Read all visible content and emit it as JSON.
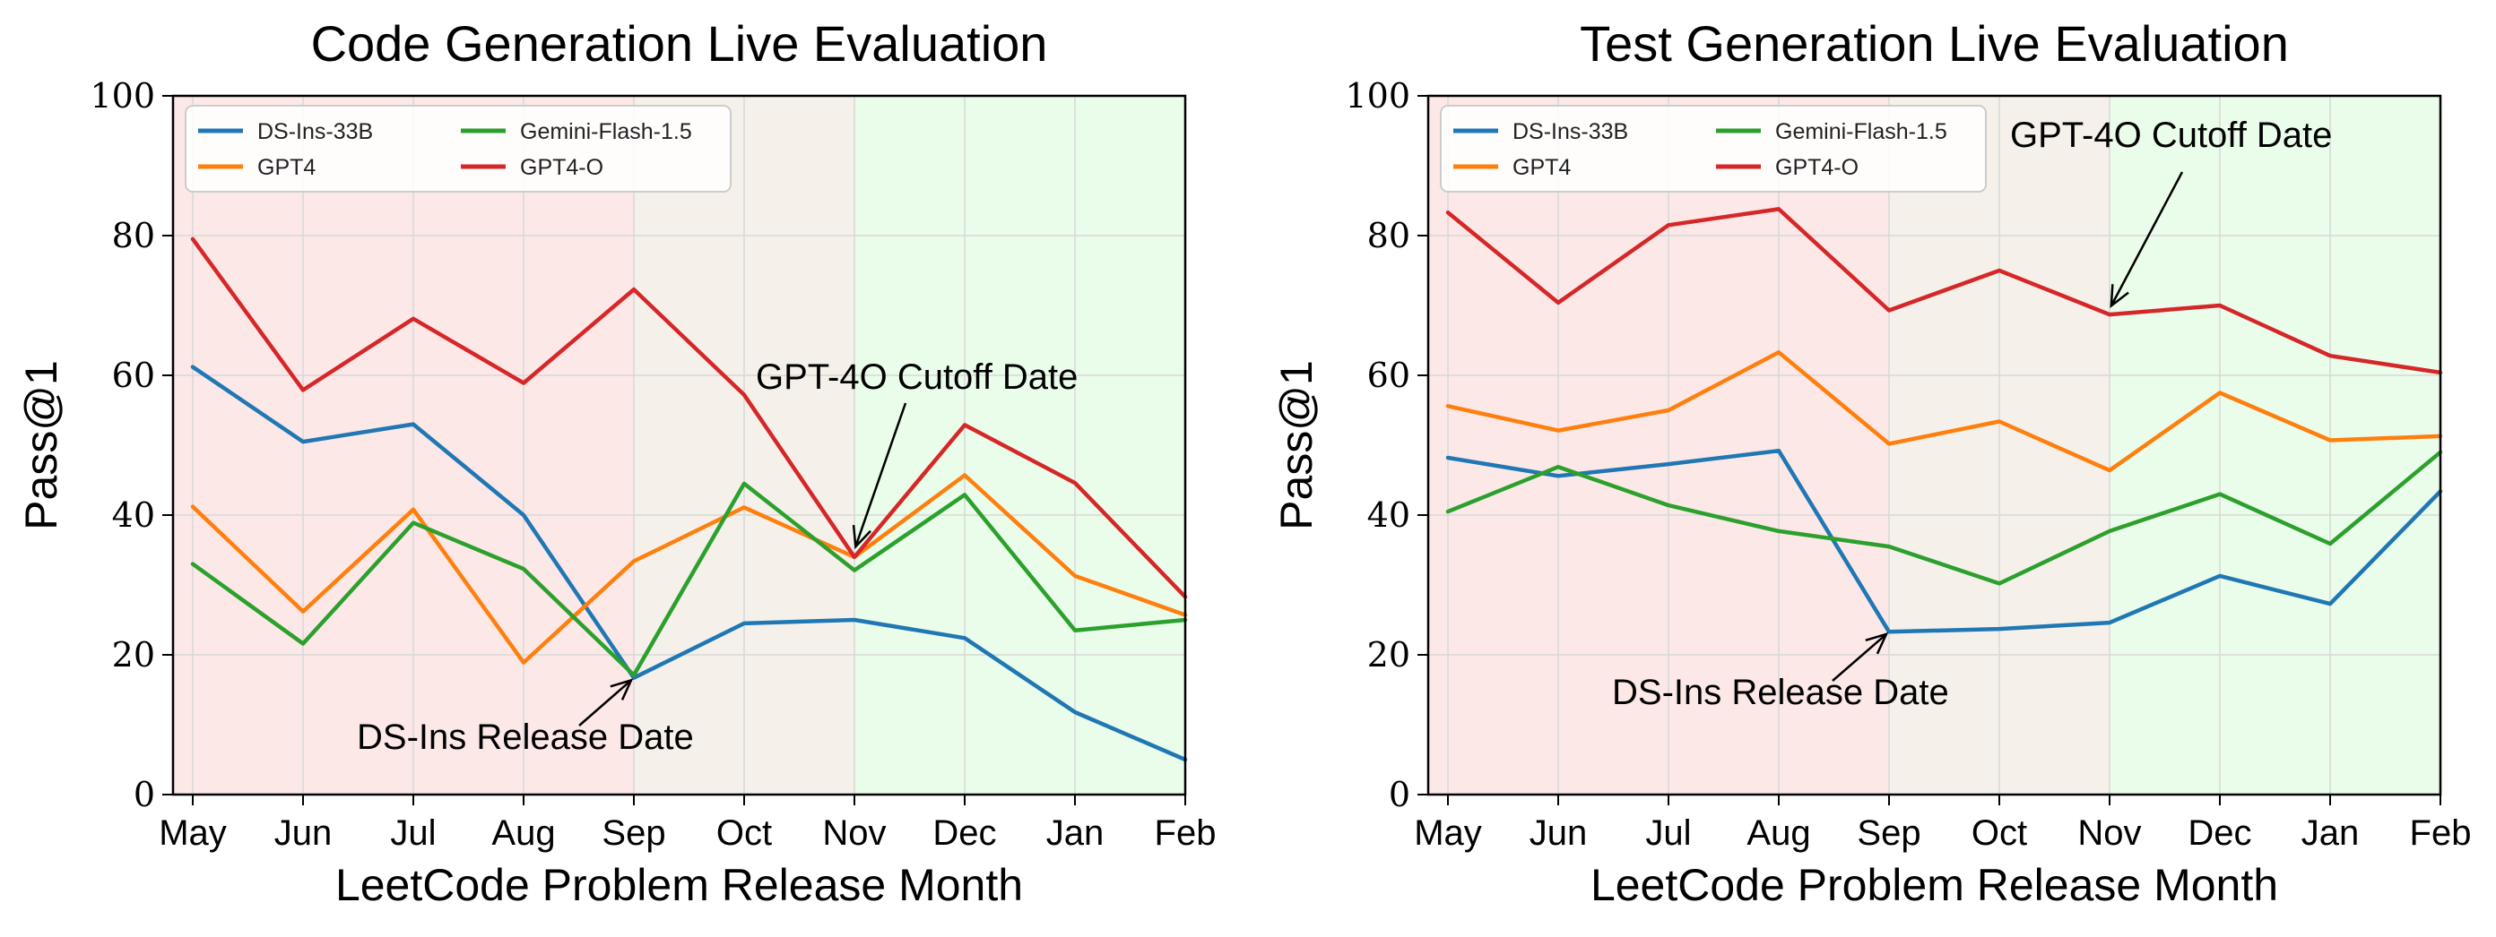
{
  "chart_data": [
    {
      "type": "line",
      "title": "Code Generation Live Evaluation",
      "xlabel": "LeetCode Problem Release Month",
      "ylabel": "Pass@1",
      "categories": [
        "May",
        "Jun",
        "Jul",
        "Aug",
        "Sep",
        "Oct",
        "Nov",
        "Dec",
        "Jan",
        "Feb"
      ],
      "ylim": [
        0,
        100
      ],
      "yticks": [
        "0",
        "20",
        "40",
        "60",
        "80",
        "100"
      ],
      "grid": true,
      "legend_position": "top-left",
      "shaded_regions": [
        {
          "from": "May",
          "to": "Sep",
          "color": "#fde8e8"
        },
        {
          "from": "Sep",
          "to": "Nov",
          "color": "#f5f1ea"
        },
        {
          "from": "Nov",
          "to": "Feb",
          "color": "#eafcea"
        }
      ],
      "series": [
        {
          "name": "DS-Ins-33B",
          "color": "#1f77b4",
          "values": [
            61.2,
            50.5,
            53.0,
            40.0,
            16.7,
            24.5,
            25.0,
            22.4,
            11.8,
            5.0
          ]
        },
        {
          "name": "GPT4",
          "color": "#ff7f0e",
          "values": [
            41.2,
            26.2,
            40.8,
            18.9,
            33.4,
            41.1,
            34.0,
            45.7,
            31.3,
            25.7
          ]
        },
        {
          "name": "Gemini-Flash-1.5",
          "color": "#2ca02c",
          "values": [
            33.0,
            21.6,
            38.9,
            32.3,
            17.1,
            44.5,
            32.1,
            42.9,
            23.5,
            25.0
          ]
        },
        {
          "name": "GPT4-O",
          "color": "#d62728",
          "values": [
            79.5,
            57.9,
            68.1,
            58.9,
            72.3,
            57.2,
            34.0,
            52.9,
            44.6,
            28.3
          ]
        }
      ],
      "annotations": [
        {
          "text": "GPT-4O Cutoff Date",
          "x": "Nov",
          "y": 35.0
        },
        {
          "text": "DS-Ins Release Date",
          "x": "Sep",
          "y": 16.7
        }
      ]
    },
    {
      "type": "line",
      "title": "Test Generation Live Evaluation",
      "xlabel": "LeetCode Problem Release Month",
      "ylabel": "Pass@1",
      "categories": [
        "May",
        "Jun",
        "Jul",
        "Aug",
        "Sep",
        "Oct",
        "Nov",
        "Dec",
        "Jan",
        "Feb"
      ],
      "ylim": [
        0,
        100
      ],
      "yticks": [
        "0",
        "20",
        "40",
        "60",
        "80",
        "100"
      ],
      "grid": true,
      "legend_position": "top-left",
      "shaded_regions": [
        {
          "from": "May",
          "to": "Sep",
          "color": "#fde8e8"
        },
        {
          "from": "Sep",
          "to": "Nov",
          "color": "#f5f1ea"
        },
        {
          "from": "Nov",
          "to": "Feb",
          "color": "#eafcea"
        }
      ],
      "series": [
        {
          "name": "DS-Ins-33B",
          "color": "#1f77b4",
          "values": [
            48.2,
            45.6,
            47.3,
            49.2,
            23.3,
            23.7,
            24.6,
            31.3,
            27.3,
            43.4
          ]
        },
        {
          "name": "GPT4",
          "color": "#ff7f0e",
          "values": [
            55.6,
            52.1,
            55.0,
            63.3,
            50.2,
            53.4,
            46.4,
            57.5,
            50.7,
            51.3
          ]
        },
        {
          "name": "Gemini-Flash-1.5",
          "color": "#2ca02c",
          "values": [
            40.5,
            46.9,
            41.4,
            37.7,
            35.5,
            30.2,
            37.7,
            43.0,
            35.9,
            49.0
          ]
        },
        {
          "name": "GPT4-O",
          "color": "#d62728",
          "values": [
            83.3,
            70.4,
            81.5,
            83.8,
            69.3,
            75.0,
            68.7,
            70.0,
            62.8,
            60.4
          ]
        }
      ],
      "annotations": [
        {
          "text": "GPT-4O Cutoff Date",
          "x": "Nov",
          "y": 69.5
        },
        {
          "text": "DS-Ins Release Date",
          "x": "Sep",
          "y": 23.3
        }
      ]
    }
  ]
}
